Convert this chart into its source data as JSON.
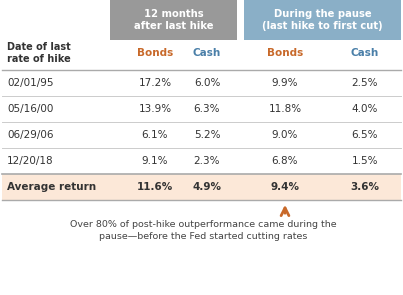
{
  "header1": "12 months\nafter last hike",
  "header2": "During the pause\n(last hike to first cut)",
  "col_label": "Date of last\nrate of hike",
  "subheaders": [
    "Bonds",
    "Cash",
    "Bonds",
    "Cash"
  ],
  "rows": [
    [
      "02/01/95",
      "17.2%",
      "6.0%",
      "9.9%",
      "2.5%"
    ],
    [
      "05/16/00",
      "13.9%",
      "6.3%",
      "11.8%",
      "4.0%"
    ],
    [
      "06/29/06",
      "6.1%",
      "5.2%",
      "9.0%",
      "6.5%"
    ],
    [
      "12/20/18",
      "9.1%",
      "2.3%",
      "6.8%",
      "1.5%"
    ]
  ],
  "avg_label": "Average return",
  "avg_values": [
    "11.6%",
    "4.9%",
    "9.4%",
    "3.6%"
  ],
  "footnote_line1": "Over 80% of post-hike outperformance came during the",
  "footnote_line2": "pause—before the Fed started cutting rates",
  "header_bg1": "#999999",
  "header_bg2": "#8aafc7",
  "header_text_color": "#ffffff",
  "bonds_color": "#c8692a",
  "cash_color": "#4a7fa8",
  "avg_row_bg": "#fce8d8",
  "arrow_color": "#c8692a",
  "line_color": "#cccccc",
  "bold_line_color": "#aaaaaa",
  "label_color": "#333333",
  "footnote_color": "#444444",
  "bg_color": "#ffffff"
}
